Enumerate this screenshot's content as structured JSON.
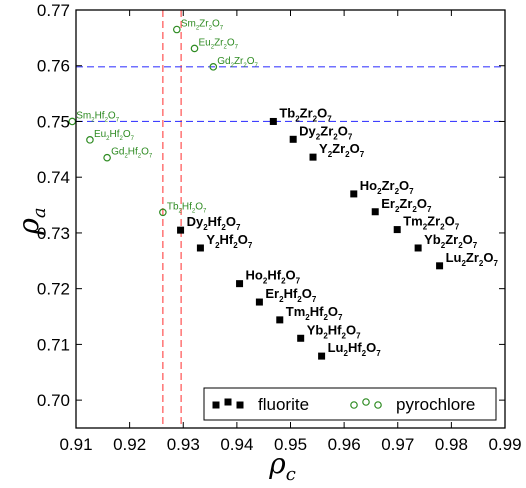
{
  "chart_data": {
    "type": "scatter",
    "xlabel": "ρ",
    "xlabel_sub": "c",
    "ylabel": "ρ",
    "ylabel_sub": "a",
    "xlim": [
      0.91,
      0.99
    ],
    "ylim": [
      0.695,
      0.77
    ],
    "x_ticks": [
      "0.91",
      "0.92",
      "0.93",
      "0.94",
      "0.95",
      "0.96",
      "0.97",
      "0.98",
      "0.99"
    ],
    "y_ticks": [
      "0.70",
      "0.71",
      "0.72",
      "0.73",
      "0.74",
      "0.75",
      "0.76",
      "0.77"
    ],
    "grid": false,
    "reference_lines": {
      "vertical": [
        0.9262,
        0.9296
      ],
      "horizontal": [
        0.75,
        0.7598
      ],
      "vertical_color": "#ff4040",
      "horizontal_color": "#4040ff"
    },
    "legend": {
      "placement": "bottom-right",
      "entries": [
        {
          "name": "fluorite",
          "marker": "filled-square",
          "color": "#000000"
        },
        {
          "name": "pyrochlore",
          "marker": "open-circle",
          "color": "#2e8b22"
        }
      ]
    },
    "series": [
      {
        "name": "fluorite",
        "color": "#000000",
        "points": [
          {
            "base": "Tb",
            "sub1": "2",
            "mid": "Zr",
            "sub2": "2",
            "tail": "O",
            "sub3": "7",
            "x": 0.9468,
            "y": 0.75
          },
          {
            "base": "Dy",
            "sub1": "2",
            "mid": "Zr",
            "sub2": "2",
            "tail": "O",
            "sub3": "7",
            "x": 0.9505,
            "y": 0.7468
          },
          {
            "base": "Y",
            "sub1": "2",
            "mid": "Zr",
            "sub2": "2",
            "tail": "O",
            "sub3": "7",
            "x": 0.9542,
            "y": 0.7436
          },
          {
            "base": "Ho",
            "sub1": "2",
            "mid": "Zr",
            "sub2": "2",
            "tail": "O",
            "sub3": "7",
            "x": 0.9618,
            "y": 0.737
          },
          {
            "base": "Er",
            "sub1": "2",
            "mid": "Zr",
            "sub2": "2",
            "tail": "O",
            "sub3": "7",
            "x": 0.9658,
            "y": 0.7338
          },
          {
            "base": "Tm",
            "sub1": "2",
            "mid": "Zr",
            "sub2": "2",
            "tail": "O",
            "sub3": "7",
            "x": 0.9699,
            "y": 0.7306
          },
          {
            "base": "Yb",
            "sub1": "2",
            "mid": "Zr",
            "sub2": "2",
            "tail": "O",
            "sub3": "7",
            "x": 0.9738,
            "y": 0.7273
          },
          {
            "base": "Lu",
            "sub1": "2",
            "mid": "Zr",
            "sub2": "2",
            "tail": "O",
            "sub3": "7",
            "x": 0.9778,
            "y": 0.7241
          },
          {
            "base": "Dy",
            "sub1": "2",
            "mid": "Hf",
            "sub2": "2",
            "tail": "O",
            "sub3": "7",
            "x": 0.9295,
            "y": 0.7305
          },
          {
            "base": "Y",
            "sub1": "2",
            "mid": "Hf",
            "sub2": "2",
            "tail": "O",
            "sub3": "7",
            "x": 0.9332,
            "y": 0.7273
          },
          {
            "base": "Ho",
            "sub1": "2",
            "mid": "Hf",
            "sub2": "2",
            "tail": "O",
            "sub3": "7",
            "x": 0.9405,
            "y": 0.7209
          },
          {
            "base": "Er",
            "sub1": "2",
            "mid": "Hf",
            "sub2": "2",
            "tail": "O",
            "sub3": "7",
            "x": 0.9442,
            "y": 0.7176
          },
          {
            "base": "Tm",
            "sub1": "2",
            "mid": "Hf",
            "sub2": "2",
            "tail": "O",
            "sub3": "7",
            "x": 0.948,
            "y": 0.7144
          },
          {
            "base": "Yb",
            "sub1": "2",
            "mid": "Hf",
            "sub2": "2",
            "tail": "O",
            "sub3": "7",
            "x": 0.9519,
            "y": 0.7111
          },
          {
            "base": "Lu",
            "sub1": "2",
            "mid": "Hf",
            "sub2": "2",
            "tail": "O",
            "sub3": "7",
            "x": 0.9558,
            "y": 0.7079
          }
        ]
      },
      {
        "name": "pyrochlore",
        "color": "#2e8b22",
        "points": [
          {
            "base": "Sm",
            "sub1": "2",
            "mid": "Zr",
            "sub2": "2",
            "tail": "O",
            "sub3": "7",
            "x": 0.9288,
            "y": 0.7665
          },
          {
            "base": "Eu",
            "sub1": "2",
            "mid": "Zr",
            "sub2": "2",
            "tail": "O",
            "sub3": "7",
            "x": 0.9321,
            "y": 0.7631
          },
          {
            "base": "Gd",
            "sub1": "2",
            "mid": "Zr",
            "sub2": "2",
            "tail": "O",
            "sub3": "7",
            "x": 0.9356,
            "y": 0.7598
          },
          {
            "base": "Sm",
            "sub1": "2",
            "mid": "Hf",
            "sub2": "2",
            "tail": "O",
            "sub3": "7",
            "x": 0.9093,
            "y": 0.75
          },
          {
            "base": "Eu",
            "sub1": "2",
            "mid": "Hf",
            "sub2": "2",
            "tail": "O",
            "sub3": "7",
            "x": 0.9126,
            "y": 0.7467
          },
          {
            "base": "Gd",
            "sub1": "2",
            "mid": "Hf",
            "sub2": "2",
            "tail": "O",
            "sub3": "7",
            "x": 0.9158,
            "y": 0.7435
          },
          {
            "base": "Tb",
            "sub1": "2",
            "mid": "Hf",
            "sub2": "2",
            "tail": "O",
            "sub3": "7",
            "x": 0.9262,
            "y": 0.7337
          }
        ]
      }
    ]
  }
}
